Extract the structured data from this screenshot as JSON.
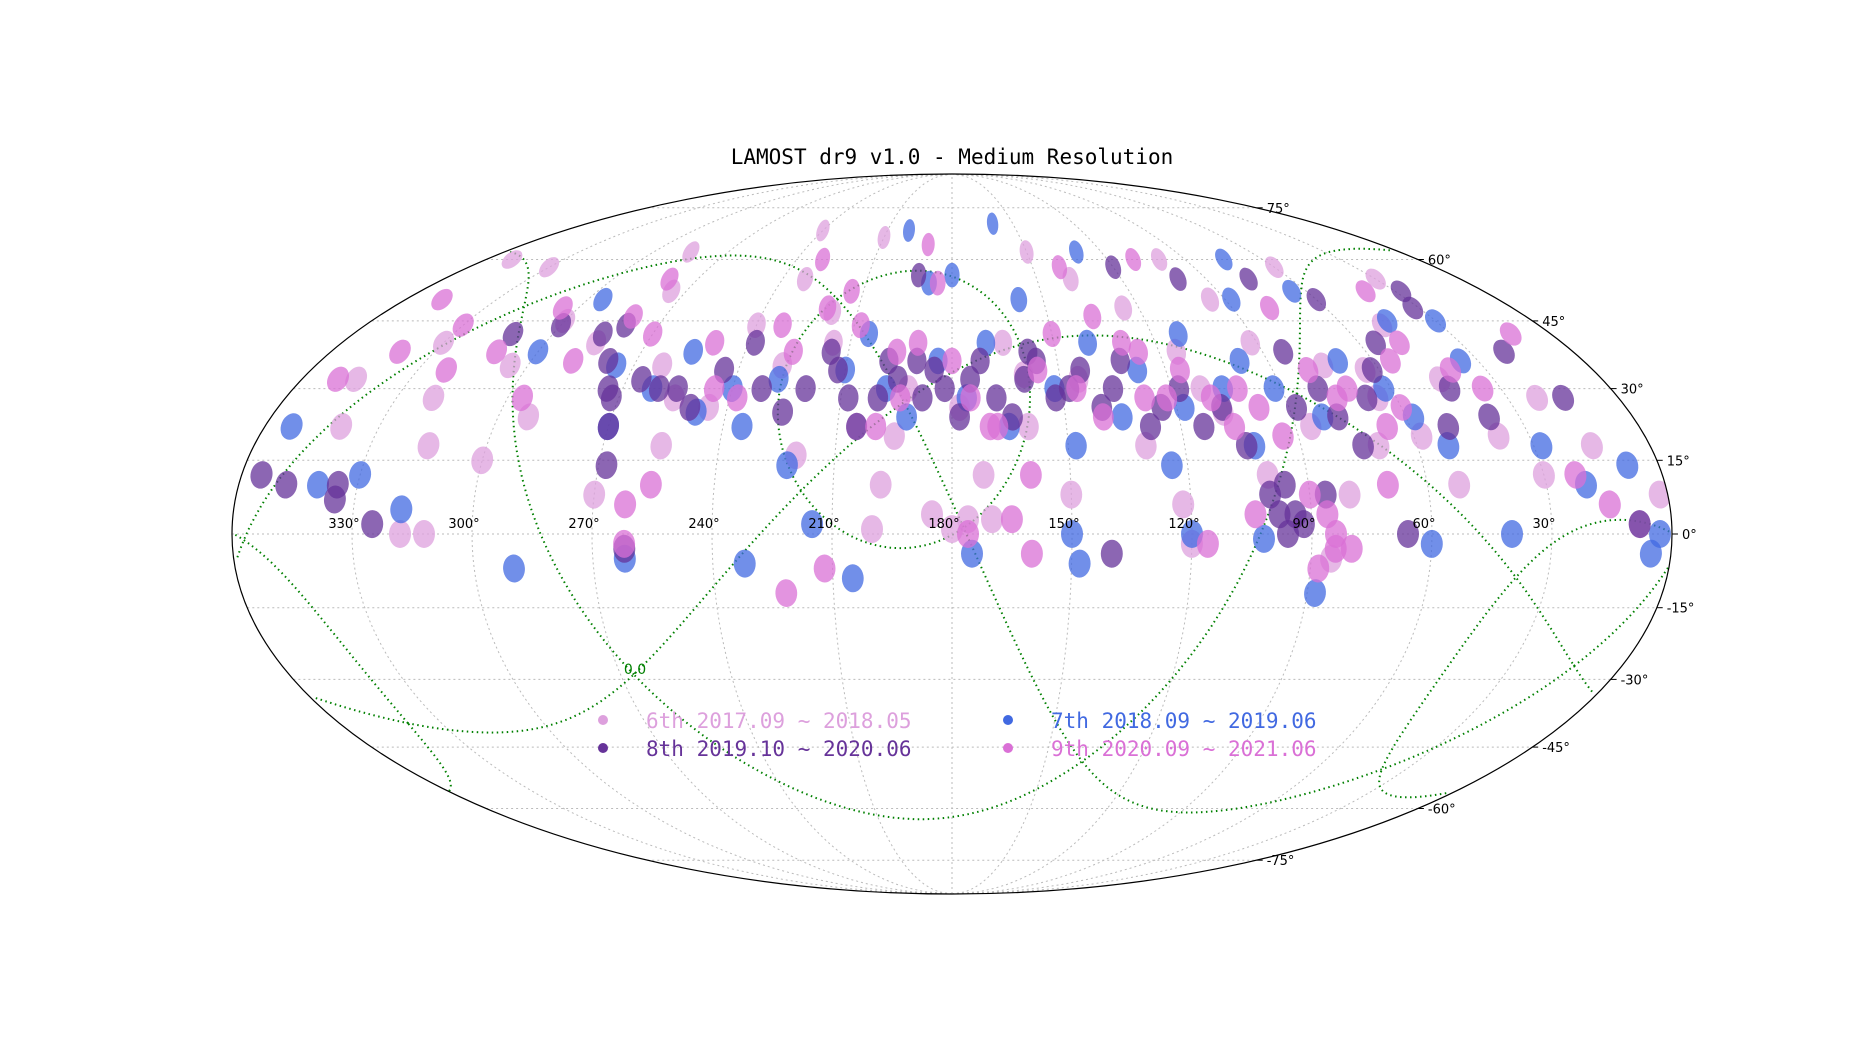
{
  "chart_data": {
    "type": "scatter",
    "projection": "mollweide",
    "title": "LAMOST dr9 v1.0 - Medium Resolution",
    "ra_tick_labels": [
      "330°",
      "300°",
      "270°",
      "240°",
      "210°",
      "180°",
      "150°",
      "120°",
      "90°",
      "60°",
      "30°"
    ],
    "ra_tick_values": [
      330,
      300,
      270,
      240,
      210,
      180,
      150,
      120,
      90,
      60,
      30
    ],
    "dec_tick_labels": [
      "75°",
      "60°",
      "45°",
      "30°",
      "15°",
      "0°",
      "-15°",
      "-30°",
      "-45°",
      "-60°",
      "-75°"
    ],
    "dec_tick_values": [
      75,
      60,
      45,
      30,
      15,
      0,
      -15,
      -30,
      -45,
      -60,
      -75
    ],
    "ra_range": [
      360,
      0
    ],
    "dec_range": [
      -90,
      90
    ],
    "grid": true,
    "legend_position": "lower-center",
    "galactic_grid_label": "0.0",
    "galactic_grid_color": "#008000",
    "series": [
      {
        "name": "6th 2017.09 ~ 2018.05",
        "color": "#dda0dd",
        "points": [
          [
            345,
            32
          ],
          [
            340,
            22
          ],
          [
            330,
            40
          ],
          [
            320,
            28
          ],
          [
            315,
            18
          ],
          [
            305,
            35
          ],
          [
            300,
            45
          ],
          [
            292,
            24
          ],
          [
            285,
            40
          ],
          [
            275,
            52
          ],
          [
            270,
            8
          ],
          [
            262,
            35
          ],
          [
            255,
            18
          ],
          [
            245,
            26
          ],
          [
            240,
            44
          ],
          [
            232,
            55
          ],
          [
            228,
            35
          ],
          [
            220,
            16
          ],
          [
            215,
            40
          ],
          [
            205,
            22
          ],
          [
            198,
            10
          ],
          [
            192,
            30
          ],
          [
            185,
            4
          ],
          [
            178,
            26
          ],
          [
            172,
            12
          ],
          [
            165,
            40
          ],
          [
            160,
            22
          ],
          [
            150,
            8
          ],
          [
            145,
            32
          ],
          [
            138,
            55
          ],
          [
            130,
            18
          ],
          [
            122,
            6
          ],
          [
            115,
            38
          ],
          [
            108,
            25
          ],
          [
            100,
            12
          ],
          [
            92,
            40
          ],
          [
            86,
            22
          ],
          [
            80,
            8
          ],
          [
            75,
            35
          ],
          [
            70,
            18
          ],
          [
            65,
            28
          ],
          [
            58,
            20
          ],
          [
            52,
            10
          ],
          [
            45,
            32
          ],
          [
            38,
            20
          ],
          [
            30,
            12
          ],
          [
            22,
            28
          ],
          [
            15,
            18
          ],
          [
            8,
            2
          ],
          [
            2,
            8
          ],
          [
            318,
            0
          ],
          [
            312,
            0
          ],
          [
            200,
            1
          ],
          [
            170,
            3
          ],
          [
            120,
            -2
          ],
          [
            85,
            -5
          ],
          [
            350,
            60
          ],
          [
            330,
            58
          ],
          [
            285,
            62
          ],
          [
            240,
            68
          ],
          [
            210,
            66
          ],
          [
            150,
            62
          ],
          [
            100,
            60
          ],
          [
            60,
            58
          ],
          [
            30,
            55
          ],
          [
            255,
            28
          ],
          [
            195,
            20
          ],
          [
            160,
            33
          ],
          [
            112,
            30
          ],
          [
            64,
            34
          ],
          [
            180,
            1
          ],
          [
            176,
            3
          ],
          [
            300,
            15
          ],
          [
            125,
            48
          ],
          [
            218,
            47
          ],
          [
            95,
            50
          ],
          [
            48,
            44
          ]
        ]
      },
      {
        "name": "7th 2018.09 ~ 2019.06",
        "color": "#4169e1",
        "points": [
          [
            340,
            10
          ],
          [
            330,
            12
          ],
          [
            318,
            5
          ],
          [
            300,
            38
          ],
          [
            295,
            50
          ],
          [
            275,
            35
          ],
          [
            270,
            22
          ],
          [
            262,
            30
          ],
          [
            255,
            38
          ],
          [
            248,
            25
          ],
          [
            240,
            30
          ],
          [
            235,
            22
          ],
          [
            228,
            32
          ],
          [
            222,
            14
          ],
          [
            215,
            2
          ],
          [
            210,
            34
          ],
          [
            205,
            42
          ],
          [
            198,
            30
          ],
          [
            192,
            24
          ],
          [
            188,
            54
          ],
          [
            184,
            36
          ],
          [
            180,
            56
          ],
          [
            176,
            28
          ],
          [
            170,
            40
          ],
          [
            165,
            22
          ],
          [
            158,
            50
          ],
          [
            152,
            30
          ],
          [
            148,
            18
          ],
          [
            140,
            40
          ],
          [
            135,
            24
          ],
          [
            128,
            34
          ],
          [
            124,
            14
          ],
          [
            118,
            26
          ],
          [
            112,
            42
          ],
          [
            106,
            30
          ],
          [
            102,
            18
          ],
          [
            98,
            36
          ],
          [
            92,
            30
          ],
          [
            88,
            50
          ],
          [
            82,
            24
          ],
          [
            75,
            60
          ],
          [
            70,
            36
          ],
          [
            62,
            30
          ],
          [
            58,
            24
          ],
          [
            52,
            18
          ],
          [
            45,
            45
          ],
          [
            35,
            36
          ],
          [
            28,
            18
          ],
          [
            20,
            10
          ],
          [
            8,
            14
          ],
          [
            3,
            0
          ],
          [
            290,
            -7
          ],
          [
            262,
            -5
          ],
          [
            232,
            -6
          ],
          [
            205,
            -9
          ],
          [
            175,
            -4
          ],
          [
            150,
            0
          ],
          [
            148,
            -6
          ],
          [
            120,
            0
          ],
          [
            102,
            -1
          ],
          [
            88,
            -12
          ],
          [
            60,
            -2
          ],
          [
            40,
            0
          ],
          [
            200,
            68
          ],
          [
            160,
            70
          ],
          [
            130,
            62
          ],
          [
            65,
            52
          ],
          [
            30,
            45
          ],
          [
            5,
            -4
          ],
          [
            353,
            22
          ]
        ]
      },
      {
        "name": "8th 2019.10 ~ 2020.06",
        "color": "#663399",
        "points": [
          [
            355,
            12
          ],
          [
            348,
            10
          ],
          [
            335,
            7
          ],
          [
            325,
            2
          ],
          [
            312,
            42
          ],
          [
            300,
            44
          ],
          [
            285,
            42
          ],
          [
            280,
            44
          ],
          [
            278,
            36
          ],
          [
            274,
            30
          ],
          [
            272,
            28
          ],
          [
            270,
            22
          ],
          [
            268,
            14
          ],
          [
            266,
            32
          ],
          [
            260,
            30
          ],
          [
            255,
            30
          ],
          [
            250,
            26
          ],
          [
            244,
            34
          ],
          [
            238,
            40
          ],
          [
            232,
            30
          ],
          [
            225,
            25
          ],
          [
            220,
            30
          ],
          [
            215,
            38
          ],
          [
            212,
            34
          ],
          [
            208,
            28
          ],
          [
            205,
            22
          ],
          [
            200,
            28
          ],
          [
            198,
            36
          ],
          [
            195,
            32
          ],
          [
            190,
            36
          ],
          [
            188,
            28
          ],
          [
            185,
            34
          ],
          [
            182,
            30
          ],
          [
            178,
            24
          ],
          [
            175,
            32
          ],
          [
            172,
            36
          ],
          [
            168,
            28
          ],
          [
            164,
            24
          ],
          [
            160,
            32
          ],
          [
            156,
            36
          ],
          [
            152,
            28
          ],
          [
            148,
            30
          ],
          [
            144,
            34
          ],
          [
            140,
            26
          ],
          [
            136,
            30
          ],
          [
            132,
            36
          ],
          [
            128,
            22
          ],
          [
            124,
            26
          ],
          [
            118,
            30
          ],
          [
            114,
            22
          ],
          [
            108,
            26
          ],
          [
            104,
            18
          ],
          [
            100,
            8
          ],
          [
            98,
            4
          ],
          [
            96,
            0
          ],
          [
            92,
            2
          ],
          [
            88,
            26
          ],
          [
            84,
            38
          ],
          [
            80,
            30
          ],
          [
            78,
            24
          ],
          [
            74,
            18
          ],
          [
            68,
            28
          ],
          [
            62,
            34
          ],
          [
            55,
            40
          ],
          [
            50,
            22
          ],
          [
            44,
            30
          ],
          [
            38,
            24
          ],
          [
            32,
            48
          ],
          [
            20,
            38
          ],
          [
            15,
            28
          ],
          [
            8,
            2
          ],
          [
            192,
            56
          ],
          [
            140,
            -4
          ],
          [
            262,
            -3
          ],
          [
            120,
            58
          ],
          [
            100,
            55
          ],
          [
            75,
            55
          ],
          [
            60,
            50
          ],
          [
            28,
            52
          ],
          [
            335,
            10
          ],
          [
            158,
            38
          ],
          [
            96,
            10
          ],
          [
            94,
            4
          ],
          [
            66,
            0
          ],
          [
            86,
            8
          ]
        ]
      },
      {
        "name": "9th 2020.09 ~ 2021.06",
        "color": "#da70d6",
        "points": [
          [
            350,
            32
          ],
          [
            340,
            38
          ],
          [
            330,
            44
          ],
          [
            322,
            34
          ],
          [
            312,
            38
          ],
          [
            305,
            48
          ],
          [
            296,
            28
          ],
          [
            288,
            36
          ],
          [
            280,
            46
          ],
          [
            270,
            42
          ],
          [
            262,
            6
          ],
          [
            256,
            10
          ],
          [
            250,
            40
          ],
          [
            245,
            30
          ],
          [
            238,
            28
          ],
          [
            232,
            44
          ],
          [
            226,
            38
          ],
          [
            220,
            48
          ],
          [
            214,
            52
          ],
          [
            208,
            44
          ],
          [
            200,
            22
          ],
          [
            196,
            38
          ],
          [
            190,
            40
          ],
          [
            185,
            54
          ],
          [
            180,
            36
          ],
          [
            175,
            28
          ],
          [
            170,
            22
          ],
          [
            165,
            3
          ],
          [
            160,
            12
          ],
          [
            156,
            34
          ],
          [
            150,
            42
          ],
          [
            146,
            30
          ],
          [
            140,
            24
          ],
          [
            136,
            46
          ],
          [
            130,
            40
          ],
          [
            126,
            38
          ],
          [
            122,
            28
          ],
          [
            116,
            34
          ],
          [
            110,
            28
          ],
          [
            106,
            22
          ],
          [
            102,
            30
          ],
          [
            98,
            26
          ],
          [
            94,
            20
          ],
          [
            90,
            8
          ],
          [
            86,
            4
          ],
          [
            84,
            -3
          ],
          [
            80,
            34
          ],
          [
            76,
            28
          ],
          [
            72,
            30
          ],
          [
            66,
            22
          ],
          [
            60,
            26
          ],
          [
            55,
            36
          ],
          [
            48,
            40
          ],
          [
            40,
            34
          ],
          [
            35,
            30
          ],
          [
            22,
            12
          ],
          [
            15,
            6
          ],
          [
            262,
            -2
          ],
          [
            212,
            -7
          ],
          [
            160,
            -4
          ],
          [
            116,
            -2
          ],
          [
            104,
            4
          ],
          [
            84,
            0
          ],
          [
            80,
            -3
          ],
          [
            88,
            -7
          ],
          [
            348,
            50
          ],
          [
            280,
            55
          ],
          [
            230,
            60
          ],
          [
            190,
            64
          ],
          [
            140,
            58
          ],
          [
            110,
            60
          ],
          [
            78,
            48
          ],
          [
            40,
            52
          ],
          [
            12,
            42
          ],
          [
            168,
            22
          ],
          [
            222,
            -12
          ],
          [
            176,
            0
          ],
          [
            194,
            28
          ],
          [
            128,
            28
          ],
          [
            70,
            10
          ]
        ]
      }
    ]
  }
}
